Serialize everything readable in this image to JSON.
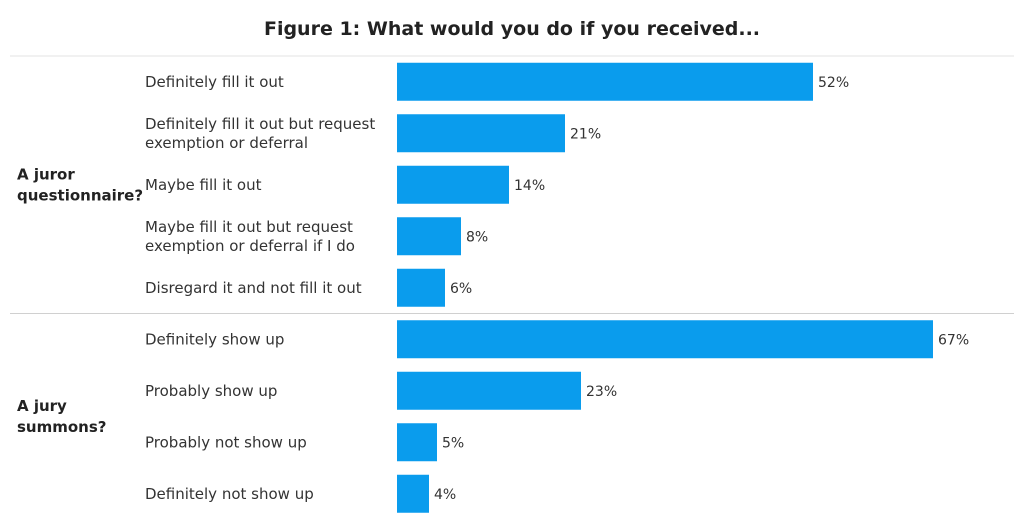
{
  "chart_data": {
    "type": "bar",
    "orientation": "horizontal",
    "title": "Figure 1: What would you do if you received...",
    "xlim": [
      0,
      70
    ],
    "grid": false,
    "bar_color": "#0a9ced",
    "value_suffix": "%",
    "groups": [
      {
        "label": [
          "A juror",
          "questionnaire?"
        ],
        "categories": [
          [
            "Definitely fill it out"
          ],
          [
            "Definitely fill it out but request",
            "exemption or deferral"
          ],
          [
            "Maybe fill it out"
          ],
          [
            "Maybe fill it out but request",
            "exemption or deferral if I do"
          ],
          [
            "Disregard it and not fill it out"
          ]
        ],
        "values": [
          52,
          21,
          14,
          8,
          6
        ]
      },
      {
        "label": [
          "A jury",
          "summons?"
        ],
        "categories": [
          [
            "Definitely show up"
          ],
          [
            "Probably show up"
          ],
          [
            "Probably not show up"
          ],
          [
            "Definitely not show up"
          ]
        ],
        "values": [
          67,
          23,
          5,
          4
        ]
      }
    ]
  }
}
